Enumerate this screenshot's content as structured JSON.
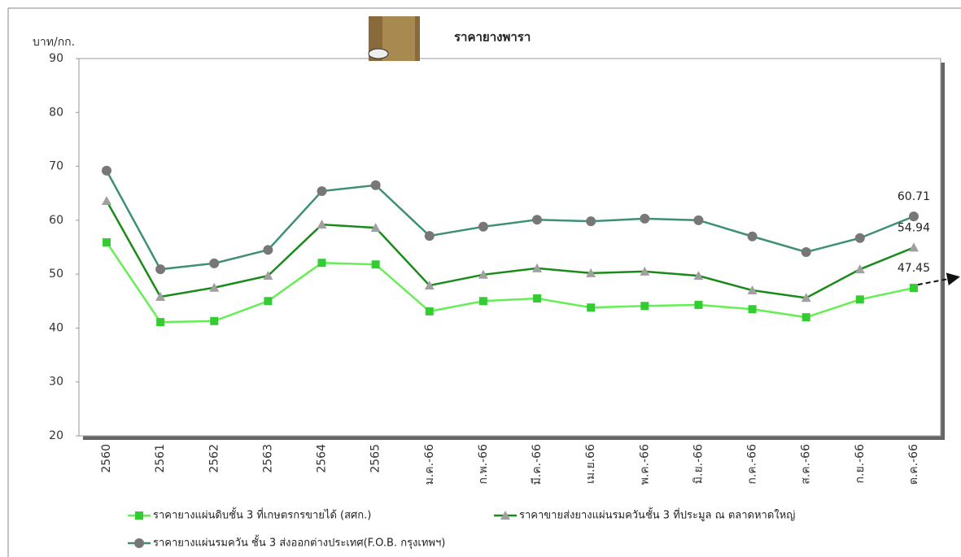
{
  "chart_data": {
    "type": "line",
    "title": "ราคายางพารา",
    "y_label": "บาท/กก.",
    "categories": [
      "2560",
      "2561",
      "2562",
      "2563",
      "2564",
      "2565",
      "ม.ค.-66",
      "ก.พ.-66",
      "มี.ค.-66",
      "เม.ย.66",
      "พ.ค.-66",
      "มิ.ย.-66",
      "ก.ค.-66",
      "ส.ค.-66",
      "ก.ย.-66",
      "ต.ค.-66"
    ],
    "series": [
      {
        "name": "ราคายางแผ่นดิบชั้น 3 ที่เกษตรกรขายได้ (สศก.)",
        "color": "#66ee55",
        "marker": "square",
        "marker_color": "#33cc33",
        "values": [
          55.9,
          41.1,
          41.3,
          45.0,
          52.1,
          51.8,
          43.1,
          45.0,
          45.5,
          43.8,
          44.1,
          44.3,
          43.5,
          42.0,
          45.3,
          47.45
        ]
      },
      {
        "name": "ราคาขายส่งยางแผ่นรมควันชั้น 3 ที่ประมูล ณ ตลาดหาดใหญ่",
        "color": "#1a8a1a",
        "marker": "triangle",
        "marker_color": "#a0a0a0",
        "values": [
          63.6,
          45.8,
          47.5,
          49.7,
          59.2,
          58.6,
          47.9,
          49.9,
          51.1,
          50.2,
          50.5,
          49.7,
          47.0,
          45.6,
          50.9,
          54.94
        ]
      },
      {
        "name": "ราคายางแผ่นรมควัน ชั้น 3 ส่งออกต่างประเทศ(F.O.B. กรุงเทพฯ)",
        "color": "#3d8f75",
        "marker": "circle",
        "marker_color": "#777777",
        "values": [
          69.2,
          50.9,
          52.0,
          54.5,
          65.4,
          66.5,
          57.1,
          58.8,
          60.1,
          59.8,
          60.3,
          60.0,
          57.0,
          54.1,
          56.7,
          60.71
        ]
      }
    ],
    "ylim": [
      20,
      90
    ],
    "yticks": [
      20,
      30,
      40,
      50,
      60,
      70,
      80,
      90
    ],
    "grid": false
  }
}
